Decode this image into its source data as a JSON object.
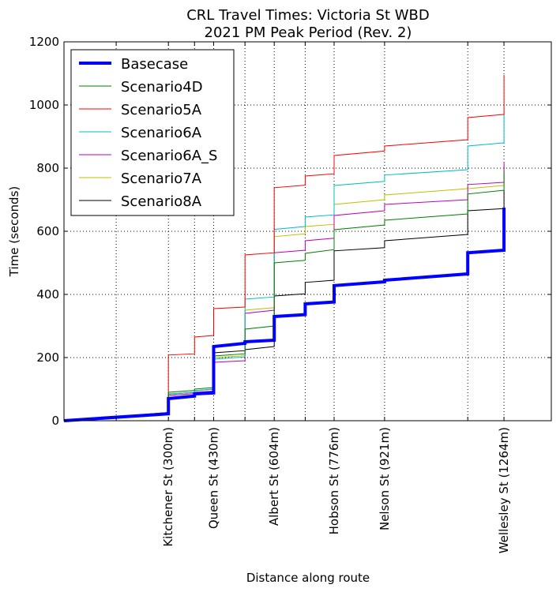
{
  "chart_data": {
    "type": "line",
    "title": [
      "CRL Travel Times: Victoria St WBD",
      "2021 PM Peak Period (Rev. 2)"
    ],
    "xlabel": "Distance along route",
    "ylabel": "Time (seconds)",
    "xlim": [
      0,
      1400
    ],
    "ylim": [
      0,
      1200
    ],
    "yticks": [
      0,
      200,
      400,
      600,
      800,
      1000,
      1200
    ],
    "xgrid": [
      150,
      300,
      375,
      430,
      520,
      604,
      693,
      776,
      921,
      1160,
      1264
    ],
    "xticks": [
      {
        "x": 300,
        "label": "Kitchener St (300m)"
      },
      {
        "x": 430,
        "label": "Queen St (430m)"
      },
      {
        "x": 604,
        "label": "Albert St (604m)"
      },
      {
        "x": 776,
        "label": "Hobson St (776m)"
      },
      {
        "x": 921,
        "label": "Nelson St (921m)"
      },
      {
        "x": 1264,
        "label": "Wellesley St (1264m)"
      }
    ],
    "legend_position": "top-left",
    "series": [
      {
        "name": "Basecase",
        "color": "#0000ff",
        "width": 4,
        "x": [
          0,
          300,
          300,
          375,
          375,
          430,
          430,
          520,
          520,
          604,
          604,
          693,
          693,
          776,
          776,
          921,
          921,
          1160,
          1160,
          1264,
          1264
        ],
        "y": [
          0,
          22,
          70,
          78,
          85,
          88,
          235,
          245,
          250,
          255,
          330,
          336,
          370,
          376,
          428,
          440,
          445,
          465,
          532,
          540,
          675
        ]
      },
      {
        "name": "Scenario4D",
        "color": "#008000",
        "width": 1,
        "x": [
          0,
          300,
          300,
          375,
          375,
          430,
          430,
          520,
          520,
          604,
          604,
          693,
          693,
          776,
          776,
          921,
          921,
          1160,
          1160,
          1264,
          1264
        ],
        "y": [
          0,
          26,
          90,
          96,
          100,
          105,
          205,
          212,
          290,
          300,
          500,
          508,
          530,
          542,
          605,
          620,
          635,
          655,
          718,
          730,
          790
        ]
      },
      {
        "name": "Scenario5A",
        "color": "#ff0000",
        "width": 1,
        "x": [
          0,
          300,
          300,
          375,
          375,
          430,
          430,
          520,
          520,
          604,
          604,
          693,
          693,
          776,
          776,
          921,
          921,
          1160,
          1160,
          1264,
          1264
        ],
        "y": [
          0,
          26,
          208,
          212,
          265,
          270,
          355,
          360,
          525,
          532,
          738,
          746,
          775,
          782,
          840,
          854,
          870,
          890,
          960,
          970,
          1095
        ]
      },
      {
        "name": "Scenario6A",
        "color": "#00bfbf",
        "width": 1,
        "x": [
          0,
          300,
          300,
          375,
          375,
          430,
          430,
          520,
          520,
          604,
          604,
          693,
          693,
          776,
          776,
          921,
          921,
          1160,
          1160,
          1264,
          1264
        ],
        "y": [
          0,
          26,
          85,
          90,
          95,
          100,
          195,
          202,
          385,
          392,
          606,
          615,
          645,
          652,
          745,
          758,
          778,
          795,
          870,
          880,
          975
        ]
      },
      {
        "name": "Scenario6A_S",
        "color": "#bf00bf",
        "width": 1,
        "x": [
          0,
          300,
          300,
          375,
          375,
          430,
          430,
          520,
          520,
          604,
          604,
          693,
          693,
          776,
          776,
          921,
          921,
          1160,
          1160,
          1264,
          1264
        ],
        "y": [
          0,
          26,
          80,
          86,
          90,
          94,
          185,
          190,
          340,
          350,
          532,
          540,
          570,
          578,
          650,
          665,
          685,
          700,
          748,
          755,
          820
        ]
      },
      {
        "name": "Scenario7A",
        "color": "#bfbf00",
        "width": 1,
        "x": [
          0,
          300,
          300,
          375,
          375,
          430,
          430,
          520,
          520,
          604,
          604,
          693,
          693,
          776,
          776,
          921,
          921,
          1160,
          1160,
          1264,
          1264
        ],
        "y": [
          0,
          26,
          84,
          90,
          95,
          100,
          200,
          206,
          350,
          358,
          583,
          592,
          615,
          622,
          685,
          700,
          715,
          735,
          735,
          745,
          810
        ]
      },
      {
        "name": "Scenario8A",
        "color": "#000000",
        "width": 1,
        "x": [
          0,
          300,
          300,
          375,
          375,
          430,
          430,
          520,
          520,
          604,
          604,
          693,
          693,
          776,
          776,
          921,
          921,
          1160,
          1160,
          1264,
          1264
        ],
        "y": [
          0,
          26,
          84,
          90,
          95,
          100,
          215,
          222,
          225,
          235,
          395,
          402,
          438,
          445,
          538,
          548,
          570,
          590,
          665,
          672,
          730
        ]
      }
    ]
  }
}
